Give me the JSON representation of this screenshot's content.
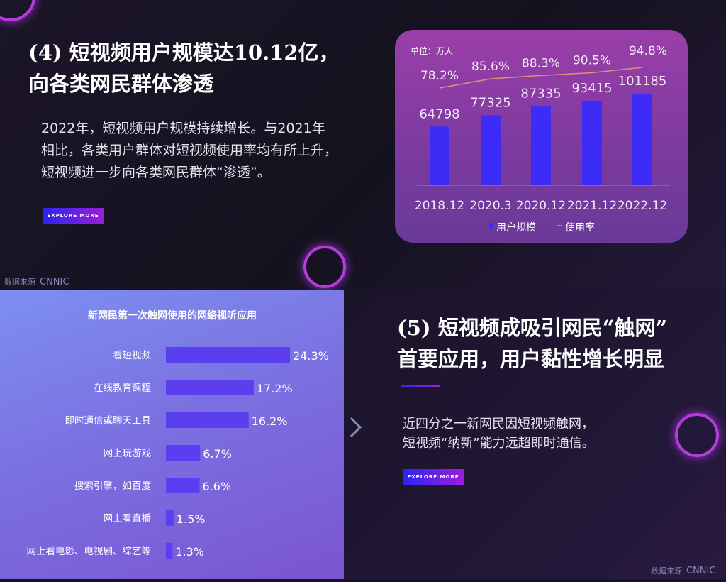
{
  "section4": {
    "title_line1": "(4) 短视频用户规模达10.12亿，",
    "title_line2": "向各类网民群体渗透",
    "body": "2022年，短视频用户规模持续增长。与2021年相比，各类用户群体对短视频使用率均有所上升，短视频进一步向各类网民群体“渗透”。",
    "button": "EXPLORE MORE",
    "source_label": "数据来源",
    "source": "CNNIC"
  },
  "section5": {
    "title_line1": "(5) 短视频成吸引网民“触网”",
    "title_line2": "首要应用，用户黏性增长明显",
    "body_line1": "近四分之一新网民因短视频触网，",
    "body_line2": "短视频“纳新”能力远超即时通信。",
    "button": "EXPLORE MORE",
    "source_label": "数据来源",
    "source": "CNNIC"
  },
  "colors": {
    "bar": "#3d2cf5",
    "line": "#e0907a",
    "accent_from": "#2a25f0",
    "accent_to": "#9a1fd8"
  },
  "chart_data": [
    {
      "type": "bar",
      "unit_label": "单位：万人",
      "categories": [
        "2018.12",
        "2020.3",
        "2020.12",
        "2021.12",
        "2022.12"
      ],
      "series": [
        {
          "name": "用户规模",
          "type": "bar",
          "values": [
            64798,
            77325,
            87335,
            93415,
            101185
          ]
        },
        {
          "name": "使用率",
          "type": "line",
          "values": [
            78.2,
            85.6,
            88.3,
            90.5,
            94.8
          ],
          "labels": [
            "78.2%",
            "85.6%",
            "88.3%",
            "90.5%",
            "94.8%"
          ]
        }
      ],
      "legend": "bottom"
    },
    {
      "type": "bar",
      "orientation": "horizontal",
      "title": "新网民第一次触网使用的网络视听应用",
      "categories": [
        "看短视频",
        "在线教育课程",
        "即时通信或聊天工具",
        "网上玩游戏",
        "搜索引擎，如百度",
        "网上看直播",
        "网上看电影、电视剧、综艺等"
      ],
      "values": [
        24.3,
        17.2,
        16.2,
        6.7,
        6.6,
        1.5,
        1.3
      ],
      "labels": [
        "24.3%",
        "17.2%",
        "16.2%",
        "6.7%",
        "6.6%",
        "1.5%",
        "1.3%"
      ]
    }
  ]
}
